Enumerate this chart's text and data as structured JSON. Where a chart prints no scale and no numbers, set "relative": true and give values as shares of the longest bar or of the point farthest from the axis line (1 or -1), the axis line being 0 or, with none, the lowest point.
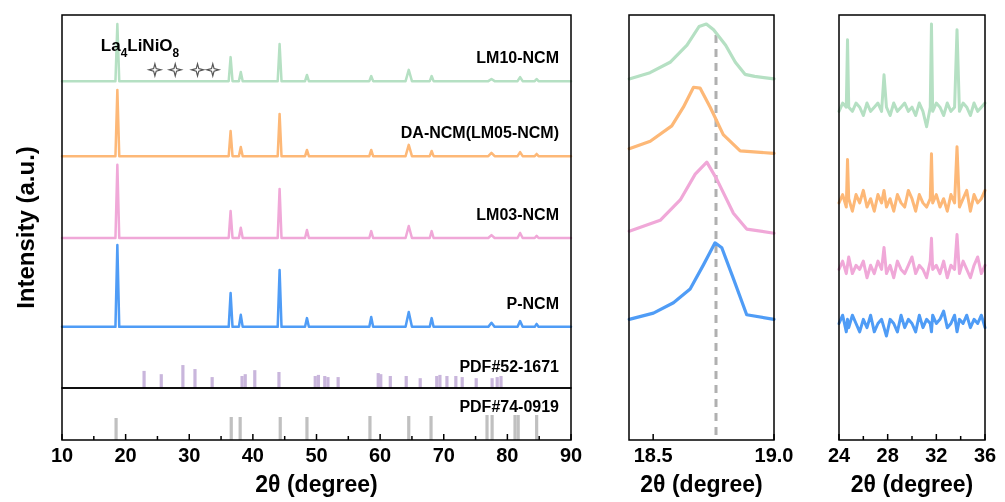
{
  "chart_data": [
    {
      "type": "line",
      "ylabel": "Intensity (a.u.)",
      "relative": true,
      "tick_labels": false,
      "x": [
        10,
        18.4,
        18.7,
        19.0,
        36.2,
        36.5,
        36.8,
        37.8,
        38.1,
        38.4,
        43.9,
        44.2,
        44.5,
        48.2,
        48.5,
        48.8,
        58.3,
        58.6,
        58.9,
        64.0,
        64.5,
        65.0,
        67.8,
        68.1,
        68.4,
        77.0,
        77.5,
        78.0,
        81.6,
        82.0,
        82.4,
        84.3,
        84.6,
        84.9,
        90
      ],
      "xlim": [
        10,
        90
      ],
      "series": [
        {
          "name": "LM10-NCM",
          "color": "#b5e0c3",
          "values": [
            0.843,
            0.843,
            1.0,
            0.843,
            0.843,
            0.909,
            0.843,
            0.843,
            0.868,
            0.843,
            0.843,
            0.945,
            0.843,
            0.843,
            0.86,
            0.843,
            0.843,
            0.857,
            0.843,
            0.843,
            0.874,
            0.843,
            0.843,
            0.857,
            0.843,
            0.843,
            0.849,
            0.843,
            0.843,
            0.854,
            0.843,
            0.843,
            0.849,
            0.843,
            0.843
          ]
        },
        {
          "name": "DA-NCM(LM05-NCM)",
          "color": "#fdb877",
          "values": [
            0.637,
            0.637,
            0.819,
            0.637,
            0.637,
            0.706,
            0.637,
            0.637,
            0.662,
            0.637,
            0.637,
            0.753,
            0.637,
            0.637,
            0.654,
            0.637,
            0.637,
            0.654,
            0.637,
            0.637,
            0.668,
            0.637,
            0.637,
            0.651,
            0.637,
            0.637,
            0.646,
            0.637,
            0.637,
            0.648,
            0.637,
            0.637,
            0.643,
            0.637,
            0.637
          ]
        },
        {
          "name": "LM03-NCM",
          "color": "#f0a8d8",
          "values": [
            0.412,
            0.412,
            0.613,
            0.412,
            0.412,
            0.486,
            0.412,
            0.412,
            0.44,
            0.412,
            0.412,
            0.547,
            0.412,
            0.412,
            0.434,
            0.412,
            0.412,
            0.431,
            0.412,
            0.412,
            0.445,
            0.412,
            0.412,
            0.431,
            0.412,
            0.412,
            0.42,
            0.412,
            0.412,
            0.426,
            0.412,
            0.412,
            0.418,
            0.412,
            0.412
          ]
        },
        {
          "name": "P-NCM",
          "color": "#4f9cf6",
          "values": [
            0.168,
            0.168,
            0.393,
            0.168,
            0.168,
            0.261,
            0.168,
            0.168,
            0.201,
            0.168,
            0.168,
            0.324,
            0.168,
            0.168,
            0.192,
            0.168,
            0.168,
            0.195,
            0.168,
            0.168,
            0.209,
            0.168,
            0.168,
            0.192,
            0.168,
            0.168,
            0.179,
            0.168,
            0.168,
            0.184,
            0.168,
            0.168,
            0.176,
            0.168,
            0.168
          ]
        },
        {
          "type": "scatter",
          "marker": "star",
          "color": "#555555",
          "x": [
            24.6,
            27.8,
            31.3,
            33.7
          ],
          "values": [
            0.874,
            0.874,
            0.874,
            0.874
          ]
        },
        {
          "type": "bar",
          "name": "PDF#52-1671",
          "color": "#c9b6dc",
          "x": [
            22.9,
            25.6,
            29.0,
            30.9,
            33.6,
            38.3,
            38.8,
            40.3,
            44.1,
            49.8,
            50.3,
            51.3,
            51.8,
            53.4,
            59.7,
            60.1,
            61.6,
            64.1,
            66.3,
            68.9,
            69.4,
            70.5,
            71.9,
            72.9,
            75.1,
            77.6,
            78.4,
            79.0
          ],
          "values": [
            0.047,
            0.038,
            0.063,
            0.052,
            0.03,
            0.033,
            0.038,
            0.049,
            0.044,
            0.033,
            0.036,
            0.033,
            0.03,
            0.03,
            0.041,
            0.038,
            0.033,
            0.033,
            0.027,
            0.033,
            0.036,
            0.033,
            0.033,
            0.03,
            0.027,
            0.027,
            0.03,
            0.033
          ]
        }
      ],
      "annotations": [
        "La$_{4}$LiNiO$_{8}$"
      ]
    },
    {
      "type": "bar",
      "xlabel": "2θ (degree)",
      "relative": true,
      "xlim": [
        10,
        90
      ],
      "xticks": [
        10,
        {
          "value": 15,
          "label": null
        },
        20,
        {
          "value": 25,
          "label": null
        },
        30,
        {
          "value": 35,
          "label": null
        },
        40,
        {
          "value": 45,
          "label": null
        },
        50,
        {
          "value": 55,
          "label": null
        },
        60,
        {
          "value": 65,
          "label": null
        },
        70,
        {
          "value": 75,
          "label": null
        },
        80,
        {
          "value": 85,
          "label": null
        },
        90
      ],
      "series": [
        {
          "name": "PDF#74-0919",
          "color": "#c0c0c0",
          "x": [
            18.5,
            36.6,
            38.0,
            44.3,
            48.5,
            58.4,
            64.5,
            68.0,
            76.8,
            77.6,
            81.2,
            81.7,
            84.6
          ],
          "values": [
            0.88,
            0.92,
            0.92,
            0.92,
            0.92,
            0.96,
            0.96,
            0.96,
            1,
            1,
            1,
            1,
            1
          ]
        }
      ]
    },
    {
      "type": "line",
      "xlabel": "2θ (degree)",
      "relative": true,
      "xlim": [
        18.4,
        19.0
      ],
      "xticks": [
        18.5,
        {
          "value": 19.0,
          "label": "19.0"
        }
      ],
      "series": [
        {
          "color": "#b5e0c3",
          "x": [
            18.401,
            18.487,
            18.57,
            18.64,
            18.69,
            18.72,
            18.75,
            18.8,
            18.84,
            18.88,
            18.92,
            19.0
          ],
          "values": [
            0.868,
            0.883,
            0.908,
            0.949,
            0.994,
            1.0,
            0.986,
            0.949,
            0.908,
            0.879,
            0.874,
            0.868
          ]
        },
        {
          "color": "#fdb877",
          "x": [
            18.401,
            18.488,
            18.577,
            18.625,
            18.667,
            18.694,
            18.736,
            18.79,
            18.86,
            19.0
          ],
          "values": [
            0.7,
            0.718,
            0.755,
            0.8,
            0.848,
            0.846,
            0.8,
            0.734,
            0.695,
            0.689
          ]
        },
        {
          "color": "#f0a8d8",
          "x": [
            18.401,
            18.529,
            18.612,
            18.674,
            18.722,
            18.763,
            18.832,
            18.887,
            19.0
          ],
          "values": [
            0.502,
            0.528,
            0.577,
            0.639,
            0.668,
            0.627,
            0.545,
            0.507,
            0.497
          ]
        },
        {
          "color": "#4f9cf6",
          "x": [
            18.401,
            18.501,
            18.584,
            18.653,
            18.708,
            18.756,
            18.784,
            18.832,
            18.887,
            19.0
          ],
          "values": [
            0.29,
            0.305,
            0.33,
            0.363,
            0.421,
            0.474,
            0.462,
            0.388,
            0.301,
            0.29
          ]
        }
      ],
      "ref_lines": [
        {
          "axis": "x",
          "value": 18.76,
          "color": "#b0b0b0",
          "line_style": "dashed"
        }
      ]
    },
    {
      "type": "line",
      "xlabel": "2θ (degree)",
      "relative": true,
      "xlim": [
        24,
        36
      ],
      "xticks": [
        24,
        {
          "value": 26,
          "label": null
        },
        28,
        {
          "value": 30,
          "label": null
        },
        32,
        {
          "value": 34,
          "label": null
        },
        36
      ],
      "x": [
        24.0,
        24.3,
        24.6,
        24.7,
        24.8,
        25.1,
        25.4,
        25.7,
        26.0,
        26.3,
        26.6,
        26.9,
        27.2,
        27.5,
        27.7,
        27.9,
        28.2,
        28.5,
        28.8,
        29.1,
        29.4,
        29.7,
        30.0,
        30.3,
        30.6,
        30.9,
        31.2,
        31.5,
        31.6,
        31.7,
        32.0,
        32.3,
        32.6,
        32.9,
        33.2,
        33.5,
        33.7,
        33.9,
        34.2,
        34.5,
        34.8,
        35.1,
        35.4,
        35.7,
        36.0
      ],
      "series": [
        {
          "color": "#b5e0c3",
          "values": [
            0.79,
            0.81,
            0.8,
            0.962,
            0.8,
            0.79,
            0.81,
            0.8,
            0.78,
            0.81,
            0.79,
            0.8,
            0.81,
            0.79,
            0.878,
            0.8,
            0.78,
            0.81,
            0.79,
            0.8,
            0.81,
            0.79,
            0.8,
            0.78,
            0.81,
            0.79,
            0.753,
            0.8,
            1.0,
            0.79,
            0.81,
            0.8,
            0.78,
            0.81,
            0.79,
            0.8,
            0.986,
            0.79,
            0.81,
            0.8,
            0.78,
            0.81,
            0.79,
            0.8,
            0.81
          ]
        },
        {
          "color": "#fdb877",
          "values": [
            0.57,
            0.59,
            0.56,
            0.674,
            0.58,
            0.55,
            0.59,
            0.57,
            0.6,
            0.56,
            0.58,
            0.55,
            0.59,
            0.57,
            0.6,
            0.56,
            0.58,
            0.55,
            0.59,
            0.57,
            0.56,
            0.6,
            0.58,
            0.55,
            0.59,
            0.57,
            0.56,
            0.58,
            0.688,
            0.57,
            0.59,
            0.56,
            0.58,
            0.55,
            0.59,
            0.57,
            0.705,
            0.56,
            0.58,
            0.6,
            0.55,
            0.59,
            0.57,
            0.58,
            0.6
          ]
        },
        {
          "color": "#f0a8d8",
          "values": [
            0.41,
            0.43,
            0.4,
            0.42,
            0.44,
            0.4,
            0.42,
            0.41,
            0.43,
            0.39,
            0.42,
            0.4,
            0.43,
            0.41,
            0.463,
            0.4,
            0.42,
            0.39,
            0.43,
            0.41,
            0.4,
            0.42,
            0.44,
            0.4,
            0.42,
            0.41,
            0.39,
            0.43,
            0.485,
            0.41,
            0.42,
            0.4,
            0.43,
            0.39,
            0.42,
            0.41,
            0.494,
            0.4,
            0.43,
            0.41,
            0.39,
            0.42,
            0.44,
            0.4,
            0.42
          ]
        },
        {
          "color": "#4f9cf6",
          "values": [
            0.28,
            0.3,
            0.26,
            0.29,
            0.27,
            0.3,
            0.28,
            0.26,
            0.29,
            0.27,
            0.3,
            0.26,
            0.28,
            0.29,
            0.27,
            0.25,
            0.29,
            0.28,
            0.26,
            0.3,
            0.27,
            0.29,
            0.28,
            0.26,
            0.3,
            0.27,
            0.29,
            0.28,
            0.26,
            0.3,
            0.28,
            0.29,
            0.31,
            0.27,
            0.28,
            0.3,
            0.26,
            0.29,
            0.28,
            0.3,
            0.27,
            0.29,
            0.28,
            0.3,
            0.27
          ]
        }
      ]
    }
  ]
}
